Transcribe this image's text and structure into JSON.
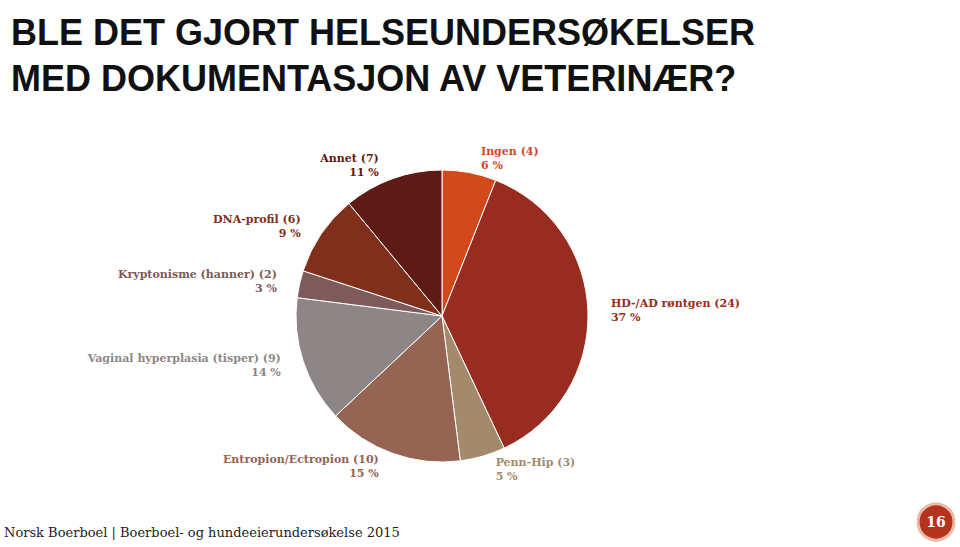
{
  "chart_data": {
    "type": "pie",
    "title": "BLE DET GJORT HELSEUNDERSØKELSER\nMED DOKUMENTASJON AV VETERINÆR?",
    "categories": [
      "Ingen (4)",
      "HD-/AD røntgen (24)",
      "Penn-Hip (3)",
      "Entropion/Ectropion (10)",
      "Vaginal hyperplasia (tisper) (9)",
      "Kryptonisme (hanner) (2)",
      "DNA-profil (6)",
      "Annet (7)"
    ],
    "values": [
      6,
      37,
      5,
      15,
      14,
      3,
      9,
      11
    ],
    "value_labels": [
      "6 %",
      "37 %",
      "5 %",
      "15 %",
      "14 %",
      "3 %",
      "9 %",
      "11 %"
    ],
    "colors": [
      "#d2491b",
      "#992c20",
      "#a48a6c",
      "#956453",
      "#8e8686",
      "#7e5a5a",
      "#80301a",
      "#5e1a14"
    ],
    "data_labels": true,
    "footer": "Norsk Boerboel | Boerboel- og hundeeierundersøkelse 2015",
    "page_number": 16
  }
}
